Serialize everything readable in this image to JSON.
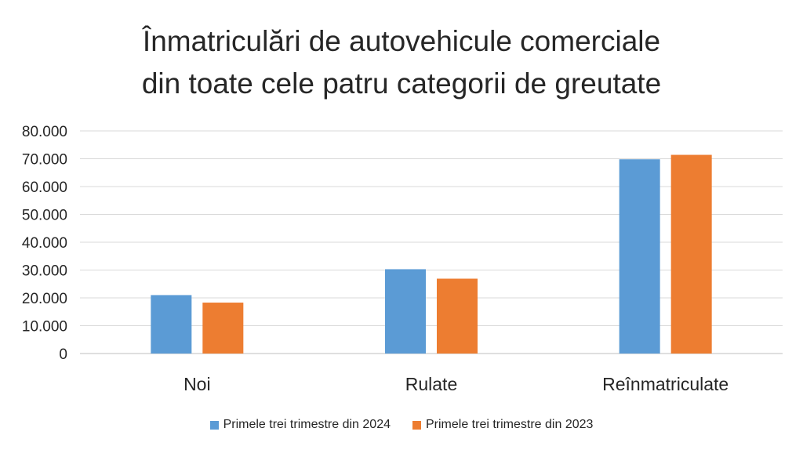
{
  "chart_data": {
    "type": "bar",
    "title_line1": "Înmatriculări de autovehicule comerciale",
    "title_line2": "din toate cele patru categorii de greutate",
    "categories": [
      "Noi",
      "Rulate",
      "Reînmatriculate"
    ],
    "series": [
      {
        "name": "Primele trei trimestre din 2024",
        "color": "#5B9BD5",
        "values": [
          21000,
          30300,
          69800
        ]
      },
      {
        "name": "Primele trei trimestre din 2023",
        "color": "#ED7D31",
        "values": [
          18300,
          26900,
          71400
        ]
      }
    ],
    "ylim": [
      0,
      80000
    ],
    "yticks": [
      0,
      10000,
      20000,
      30000,
      40000,
      50000,
      60000,
      70000,
      80000
    ],
    "ytick_labels": [
      "0",
      "10.000",
      "20.000",
      "30.000",
      "40.000",
      "50.000",
      "60.000",
      "70.000",
      "80.000"
    ],
    "grid": true,
    "legend_position": "bottom"
  }
}
